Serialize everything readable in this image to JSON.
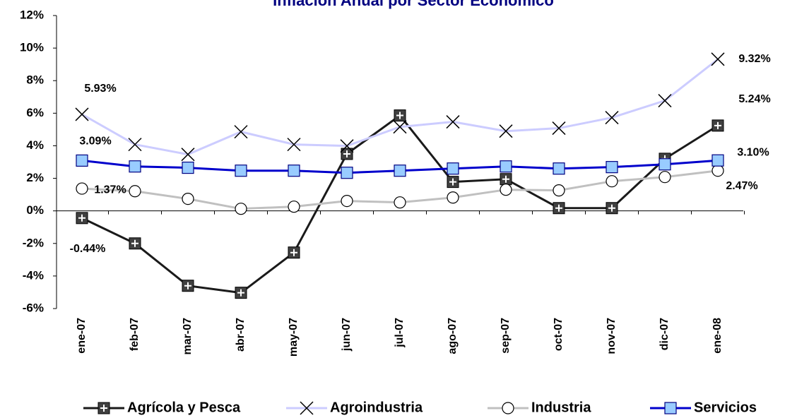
{
  "chart_data": {
    "type": "line",
    "title": "Inflación Anual por Sector Económico",
    "categories": [
      "ene-07",
      "feb-07",
      "mar-07",
      "abr-07",
      "may-07",
      "jun-07",
      "jul-07",
      "ago-07",
      "sep-07",
      "oct-07",
      "nov-07",
      "dic-07",
      "ene-08"
    ],
    "ylim": [
      -6,
      12
    ],
    "yticks": [
      {
        "value": -6,
        "label": "-6%"
      },
      {
        "value": -4,
        "label": "-4%"
      },
      {
        "value": -2,
        "label": "-2%"
      },
      {
        "value": 0,
        "label": "0%"
      },
      {
        "value": 2,
        "label": "2%"
      },
      {
        "value": 4,
        "label": "4%"
      },
      {
        "value": 6,
        "label": "6%"
      },
      {
        "value": 8,
        "label": "8%"
      },
      {
        "value": 10,
        "label": "10%"
      },
      {
        "value": 12,
        "label": "12%"
      }
    ],
    "grid": false,
    "legend": "bottom",
    "series": [
      {
        "name": "Agrícola y Pesca",
        "color": "#1a1a1a",
        "marker": "plus-square",
        "values": [
          -0.44,
          -2.0,
          -4.6,
          -5.03,
          -2.56,
          3.5,
          5.86,
          1.78,
          1.95,
          0.17,
          0.17,
          3.2,
          5.24
        ],
        "value_labels": [
          "-0.44%",
          null,
          null,
          null,
          null,
          null,
          null,
          null,
          null,
          null,
          null,
          null,
          "5.24%"
        ]
      },
      {
        "name": "Agroindustria",
        "color": "#ccccff",
        "marker": "x",
        "values": [
          5.93,
          4.08,
          3.47,
          4.86,
          4.08,
          3.99,
          5.16,
          5.47,
          4.9,
          5.08,
          5.73,
          6.77,
          9.32
        ],
        "value_labels": [
          "5.93%",
          null,
          null,
          null,
          null,
          null,
          null,
          null,
          null,
          null,
          null,
          null,
          "9.32%"
        ]
      },
      {
        "name": "Industria",
        "color": "#c0c0c0",
        "marker": "circle",
        "values": [
          1.37,
          1.21,
          0.74,
          0.13,
          0.26,
          0.61,
          0.52,
          0.82,
          1.3,
          1.26,
          1.82,
          2.08,
          2.47
        ],
        "value_labels": [
          "1.37%",
          null,
          null,
          null,
          null,
          null,
          null,
          null,
          null,
          null,
          null,
          null,
          "2.47%"
        ]
      },
      {
        "name": "Servicios",
        "color": "#0000cc",
        "marker": "square",
        "values": [
          3.09,
          2.73,
          2.65,
          2.47,
          2.47,
          2.34,
          2.47,
          2.6,
          2.73,
          2.6,
          2.69,
          2.86,
          3.1
        ],
        "value_labels": [
          "3.09%",
          null,
          null,
          null,
          null,
          null,
          null,
          null,
          null,
          null,
          null,
          null,
          "3.10%"
        ]
      }
    ]
  }
}
